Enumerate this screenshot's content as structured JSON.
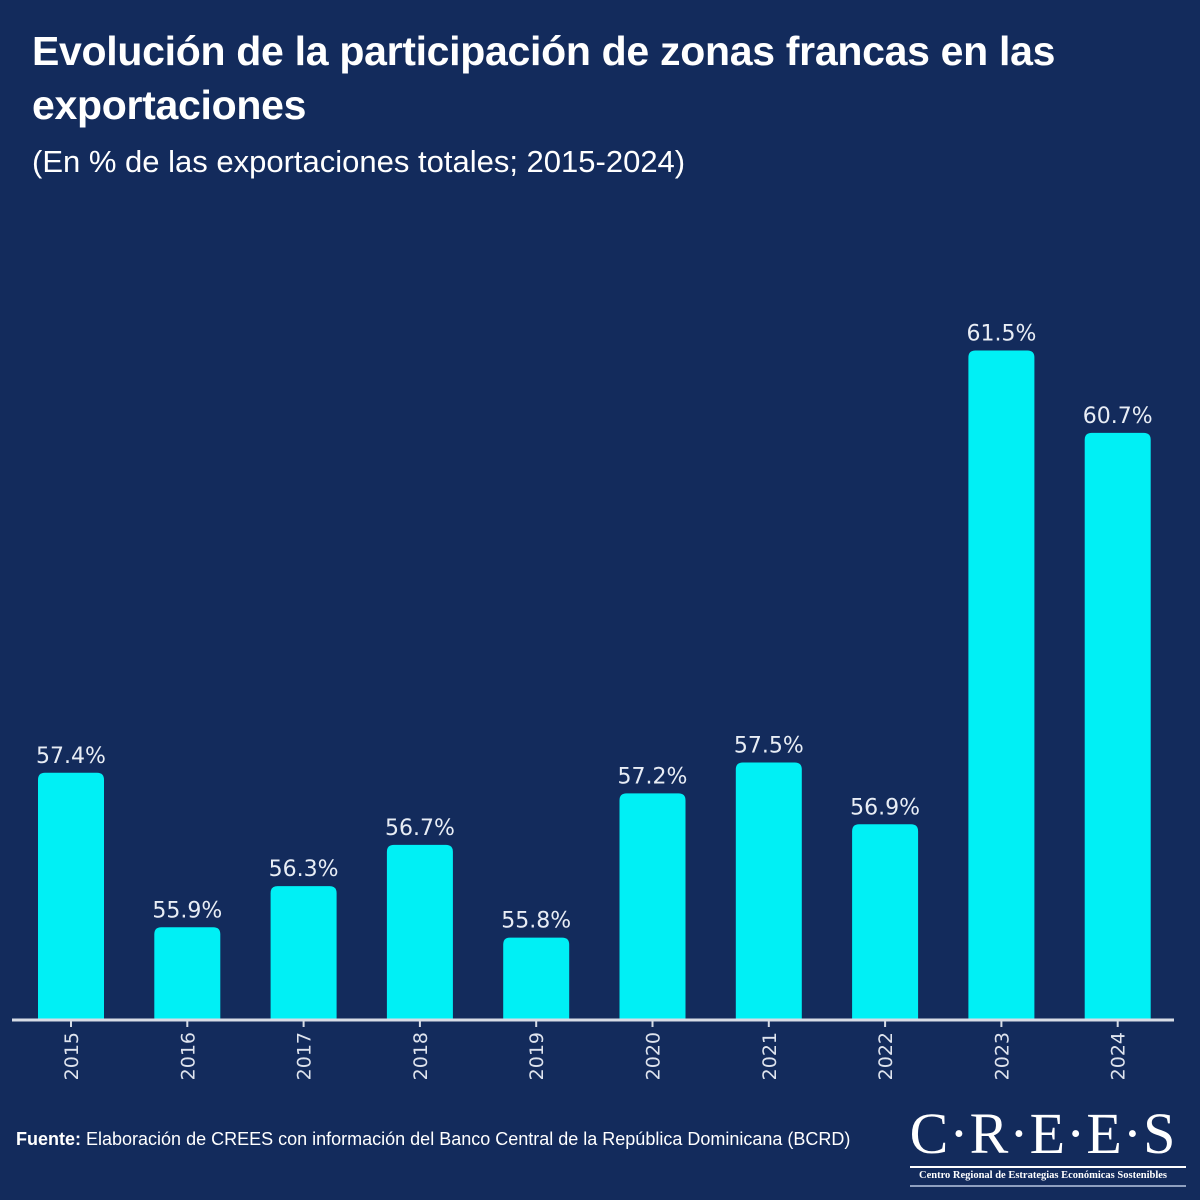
{
  "header": {
    "title": "Evolución de la participación de zonas francas en las exportaciones",
    "subtitle": "(En % de las exportaciones totales; 2015-2024)"
  },
  "chart_data": {
    "type": "bar",
    "title": "Evolución de la participación de zonas francas en las exportaciones",
    "subtitle": "(En % de las exportaciones totales; 2015-2024)",
    "xlabel": "",
    "ylabel": "",
    "categories": [
      "2015",
      "2016",
      "2017",
      "2018",
      "2019",
      "2020",
      "2021",
      "2022",
      "2023",
      "2024"
    ],
    "values": [
      57.4,
      55.9,
      56.3,
      56.7,
      55.8,
      57.2,
      57.5,
      56.9,
      61.5,
      60.7
    ],
    "data_labels": [
      "57.4%",
      "55.9%",
      "56.3%",
      "56.7%",
      "55.8%",
      "57.2%",
      "57.5%",
      "56.9%",
      "61.5%",
      "60.7%"
    ],
    "ylim": [
      55,
      62
    ],
    "y_axis_visible": false,
    "grid": false,
    "legend": "none",
    "bar_color": "#00f0f5",
    "x_tick_rotation": "vertical"
  },
  "footer": {
    "source_label": "Fuente:",
    "source_text": " Elaboración de CREES con información del Banco Central de la República Dominicana (BCRD)"
  },
  "logo": {
    "mark": "C·R·E·E·S",
    "tagline": "Centro Regional de Estrategias Económicas Sostenibles"
  },
  "colors": {
    "background": "#132b5c",
    "bar": "#00f0f5",
    "text": "#ffffff"
  }
}
